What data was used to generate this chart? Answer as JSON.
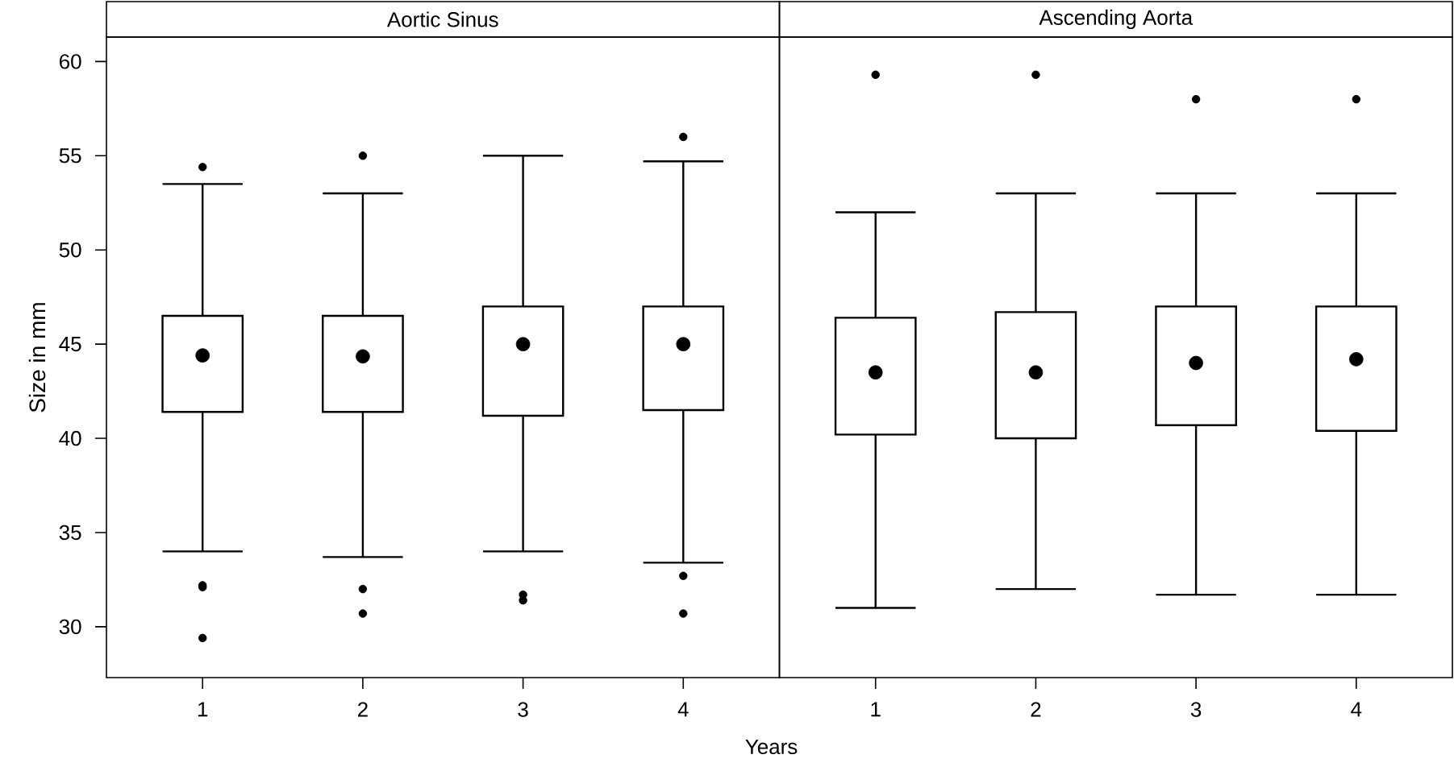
{
  "chart_data": [
    {
      "type": "box",
      "title": "Aortic Sinus",
      "xlabel": "Years",
      "ylabel": "Size in mm",
      "categories": [
        "1",
        "2",
        "3",
        "4"
      ],
      "color": "#000000",
      "boxes": [
        {
          "low": 34.0,
          "q1": 41.4,
          "median": 44.4,
          "q3": 46.5,
          "high": 53.5,
          "outliers": [
            54.4,
            32.2,
            32.1,
            29.4
          ]
        },
        {
          "low": 33.7,
          "q1": 41.4,
          "median": 44.35,
          "q3": 46.5,
          "high": 53.0,
          "outliers": [
            55.0,
            32.0,
            30.7
          ]
        },
        {
          "low": 34.0,
          "q1": 41.2,
          "median": 45.0,
          "q3": 47.0,
          "high": 55.0,
          "outliers": [
            31.7,
            31.4
          ]
        },
        {
          "low": 33.4,
          "q1": 41.5,
          "median": 45.0,
          "q3": 47.0,
          "high": 54.7,
          "outliers": [
            56.0,
            32.7,
            30.7
          ]
        }
      ],
      "ylim": [
        27.3,
        61.3
      ],
      "yticks": [
        30,
        35,
        40,
        45,
        50,
        55,
        60
      ]
    },
    {
      "type": "box",
      "title": "Ascending Aorta",
      "categories": [
        "1",
        "2",
        "3",
        "4"
      ],
      "color": "#000000",
      "boxes": [
        {
          "low": 31.0,
          "q1": 40.2,
          "median": 43.5,
          "q3": 46.4,
          "high": 52.0,
          "outliers": [
            59.3
          ]
        },
        {
          "low": 32.0,
          "q1": 40.0,
          "median": 43.5,
          "q3": 46.7,
          "high": 53.0,
          "outliers": [
            59.3
          ]
        },
        {
          "low": 31.7,
          "q1": 40.7,
          "median": 44.0,
          "q3": 47.0,
          "high": 53.0,
          "outliers": [
            58.0
          ]
        },
        {
          "low": 31.7,
          "q1": 40.4,
          "median": 44.2,
          "q3": 47.0,
          "high": 53.0,
          "outliers": [
            58.0
          ]
        }
      ],
      "ylim": [
        27.3,
        61.3
      ],
      "tick_labels": "x"
    }
  ]
}
